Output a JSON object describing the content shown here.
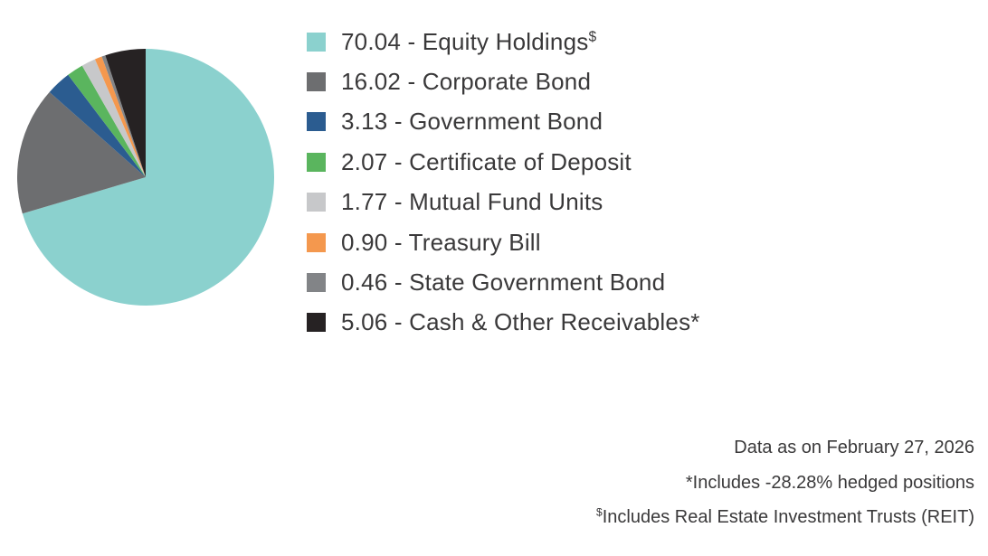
{
  "chart_data": {
    "type": "pie",
    "title": "",
    "unit": "percent",
    "start_angle_deg": 0,
    "direction": "clockwise",
    "legend_position": "right",
    "legend_label_format": "{value} - {label}",
    "series": [
      {
        "label": "Equity Holdings",
        "label_superscript": "$",
        "value": 70.04,
        "color": "#8bd1ce"
      },
      {
        "label": "Corporate Bond",
        "value": 16.02,
        "color": "#6d6e70"
      },
      {
        "label": "Government Bond",
        "value": 3.13,
        "color": "#2b5c90"
      },
      {
        "label": "Certificate of Deposit",
        "value": 2.07,
        "color": "#5ab55e"
      },
      {
        "label": "Mutual Fund Units",
        "value": 1.77,
        "color": "#c7c8ca"
      },
      {
        "label": "Treasury Bill",
        "value": 0.9,
        "color": "#f4984e"
      },
      {
        "label": "State Government Bond",
        "value": 0.46,
        "color": "#828487"
      },
      {
        "label": "Cash & Other Receivables*",
        "value": 5.06,
        "color": "#262223"
      }
    ]
  },
  "footnotes": {
    "data_as_on": "Data as on February 27, 2026",
    "hedged_note": "*Includes -28.28% hedged positions",
    "reit_note_superscript": "$",
    "reit_note_text": "Includes Real Estate Investment Trusts (REIT)"
  },
  "colors": {
    "text": "#3a393a",
    "background": "#ffffff"
  }
}
